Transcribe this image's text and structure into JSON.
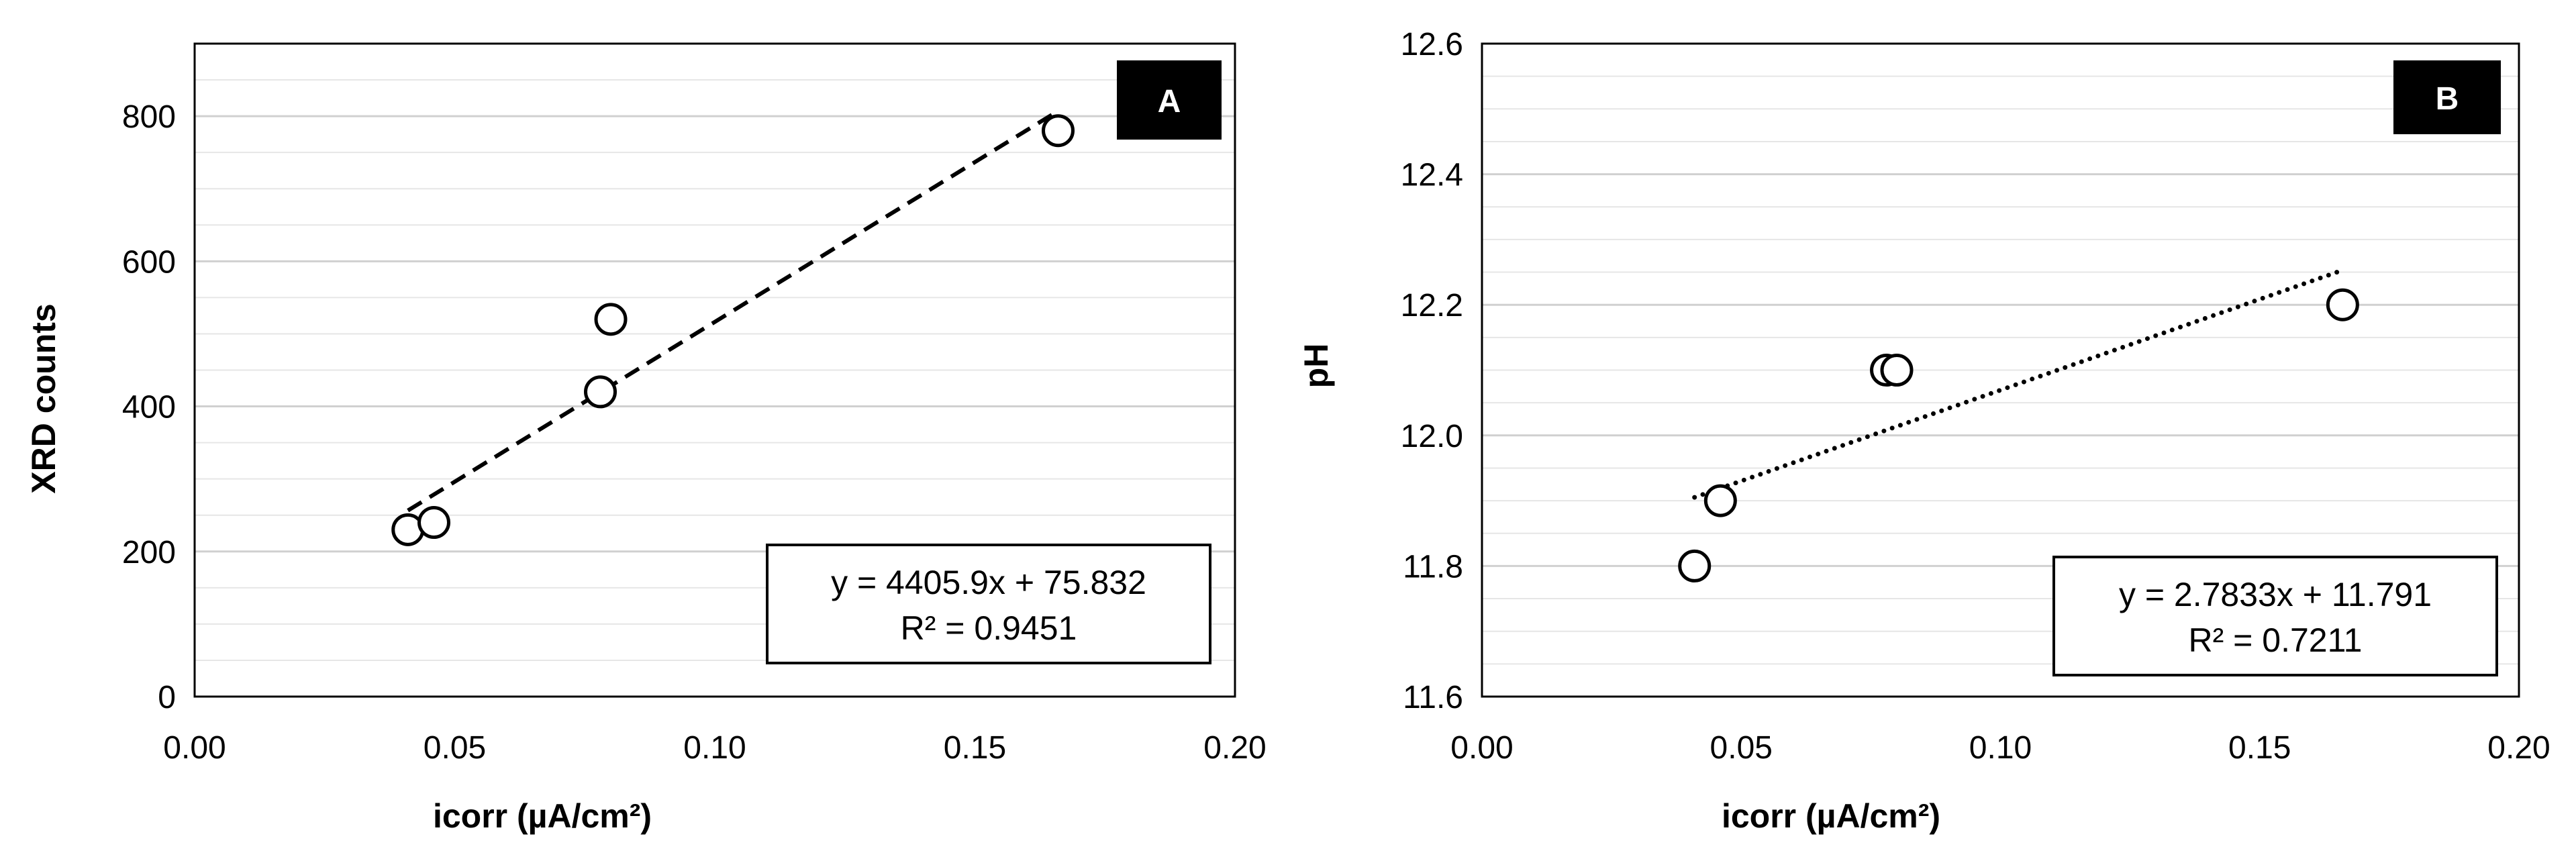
{
  "colors": {
    "background": "#ffffff",
    "major_grid": "#d0d0d0",
    "minor_grid": "#e6e6e6",
    "axis": "#000000",
    "marker_fill": "#ffffff",
    "marker_stroke": "#000000",
    "tag_background": "#000000",
    "tag_text": "#ffffff"
  },
  "chart_data": [
    {
      "panel": "A",
      "type": "scatter",
      "xlabel": "icorr (µA/cm²)",
      "ylabel": "XRD counts",
      "xlim": [
        0,
        0.2
      ],
      "ylim": [
        0,
        900
      ],
      "xticks": [
        "0.00",
        "0.05",
        "0.10",
        "0.15",
        "0.20"
      ],
      "yticks": [
        "0",
        "200",
        "400",
        "600",
        "800"
      ],
      "x_tick_values": [
        0,
        0.05,
        0.1,
        0.15,
        0.2
      ],
      "y_tick_values": [
        0,
        200,
        400,
        600,
        800
      ],
      "grid": true,
      "points": [
        {
          "x": 0.041,
          "y": 230
        },
        {
          "x": 0.046,
          "y": 240
        },
        {
          "x": 0.078,
          "y": 420
        },
        {
          "x": 0.08,
          "y": 520
        },
        {
          "x": 0.166,
          "y": 780
        }
      ],
      "trendline": {
        "style": "dashed",
        "slope": 4405.9,
        "intercept": 75.832,
        "x_range": [
          0.041,
          0.166
        ]
      },
      "equation": "y = 4405.9x + 75.832",
      "r_squared": "R² = 0.9451",
      "legend_position": "bottom-right",
      "tag_position": "top-right"
    },
    {
      "panel": "B",
      "type": "scatter",
      "xlabel": "icorr (µA/cm²)",
      "ylabel": "pH",
      "xlim": [
        0,
        0.2
      ],
      "ylim": [
        11.6,
        12.6
      ],
      "xticks": [
        "0.00",
        "0.05",
        "0.10",
        "0.15",
        "0.20"
      ],
      "yticks": [
        "11.6",
        "11.8",
        "12.0",
        "12.2",
        "12.4",
        "12.6"
      ],
      "x_tick_values": [
        0,
        0.05,
        0.1,
        0.15,
        0.2
      ],
      "y_tick_values": [
        11.6,
        11.8,
        12.0,
        12.2,
        12.4,
        12.6
      ],
      "grid": true,
      "points": [
        {
          "x": 0.041,
          "y": 11.8
        },
        {
          "x": 0.046,
          "y": 11.9
        },
        {
          "x": 0.078,
          "y": 12.1
        },
        {
          "x": 0.08,
          "y": 12.1
        },
        {
          "x": 0.166,
          "y": 12.2
        }
      ],
      "trendline": {
        "style": "dotted",
        "slope": 2.7833,
        "intercept": 11.791,
        "x_range": [
          0.041,
          0.166
        ]
      },
      "equation": "y = 2.7833x + 11.791",
      "r_squared": "R² = 0.7211",
      "legend_position": "bottom-right",
      "tag_position": "top-right"
    }
  ]
}
